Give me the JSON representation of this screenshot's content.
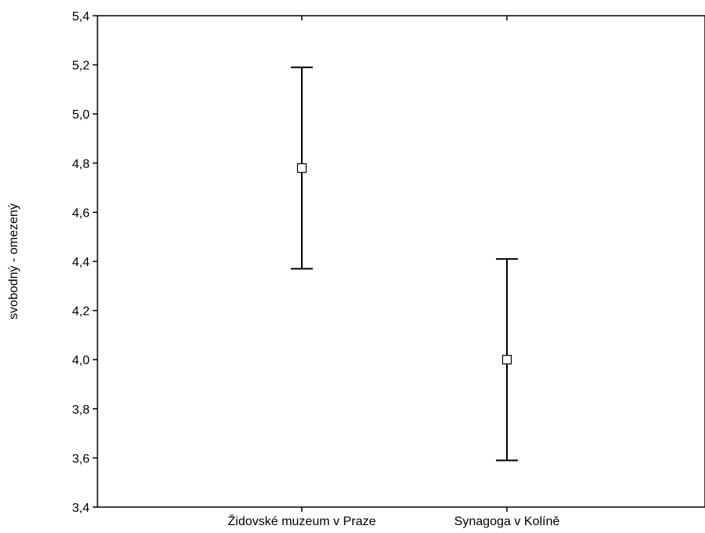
{
  "chart_data": {
    "type": "scatter",
    "subtype": "mean-with-error-bars",
    "title": "",
    "xlabel": "",
    "ylabel": "svobodný - omezený",
    "ylim": [
      3.4,
      5.4
    ],
    "yticks": [
      "3,4",
      "3,6",
      "3,8",
      "4,0",
      "4,2",
      "4,4",
      "4,6",
      "4,8",
      "5,0",
      "5,2",
      "5,4"
    ],
    "ytick_values": [
      3.4,
      3.6,
      3.8,
      4.0,
      4.2,
      4.4,
      4.6,
      4.8,
      5.0,
      5.2,
      5.4
    ],
    "categories": [
      "Židovské muzeum v Praze",
      "Synagoga v Kolíně"
    ],
    "points": [
      {
        "category": "Židovské muzeum v Praze",
        "mean": 4.78,
        "lower": 4.37,
        "upper": 5.19
      },
      {
        "category": "Synagoga v Kolíně",
        "mean": 4.0,
        "lower": 3.59,
        "upper": 4.41
      }
    ],
    "grid": false,
    "legend": "none",
    "colors": {
      "line": "#000000",
      "marker_fill": "#ffffff"
    }
  }
}
